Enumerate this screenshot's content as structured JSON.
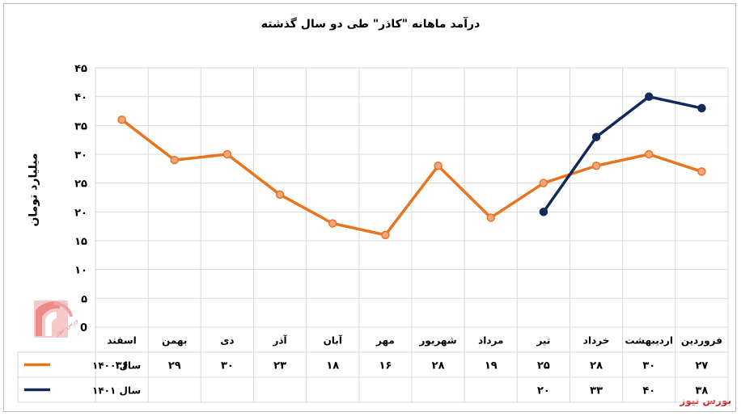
{
  "chart_data": {
    "type": "line",
    "title": "درآمد ماهانه \"کاذر\" طی دو سال گذشته",
    "ylabel": "میلیارد تومان",
    "xlabel": "",
    "ylim": [
      0,
      45
    ],
    "yticks": [
      "0",
      "۵",
      "۱۰",
      "۱۵",
      "۲۰",
      "۲۵",
      "۳۰",
      "۳۵",
      "۴۰",
      "۴۵"
    ],
    "ytick_values": [
      0,
      5,
      10,
      15,
      20,
      25,
      30,
      35,
      40,
      45
    ],
    "grid": true,
    "legend": "bottom-left-table",
    "categories": [
      "فروردین",
      "اردیبهشت",
      "خرداد",
      "تیر",
      "مرداد",
      "شهریور",
      "مهر",
      "آبان",
      "آذر",
      "دی",
      "بهمن",
      "اسفند"
    ],
    "series": [
      {
        "name": "سال ۱۴۰۰",
        "color": "#E8741E",
        "marker_color": "#F4A580",
        "values": [
          27,
          30,
          28,
          25,
          19,
          28,
          16,
          18,
          23,
          30,
          29,
          36
        ],
        "labels": [
          "۲۷",
          "۳۰",
          "۲۸",
          "۲۵",
          "۱۹",
          "۲۸",
          "۱۶",
          "۱۸",
          "۲۳",
          "۳۰",
          "۲۹",
          "۳۶"
        ]
      },
      {
        "name": "سال ۱۴۰۱",
        "color": "#14285A",
        "marker_color": "#14285A",
        "values": [
          38,
          40,
          33,
          20,
          null,
          null,
          null,
          null,
          null,
          null,
          null,
          null
        ],
        "labels": [
          "۳۸",
          "۴۰",
          "۳۳",
          "۲۰",
          "",
          "",
          "",
          "",
          "",
          "",
          "",
          ""
        ]
      }
    ]
  },
  "footer": {
    "source": "بورس نیوز",
    "logo_icon": "bourse-news-logo-icon",
    "logo_text": "بورس نیوز"
  }
}
